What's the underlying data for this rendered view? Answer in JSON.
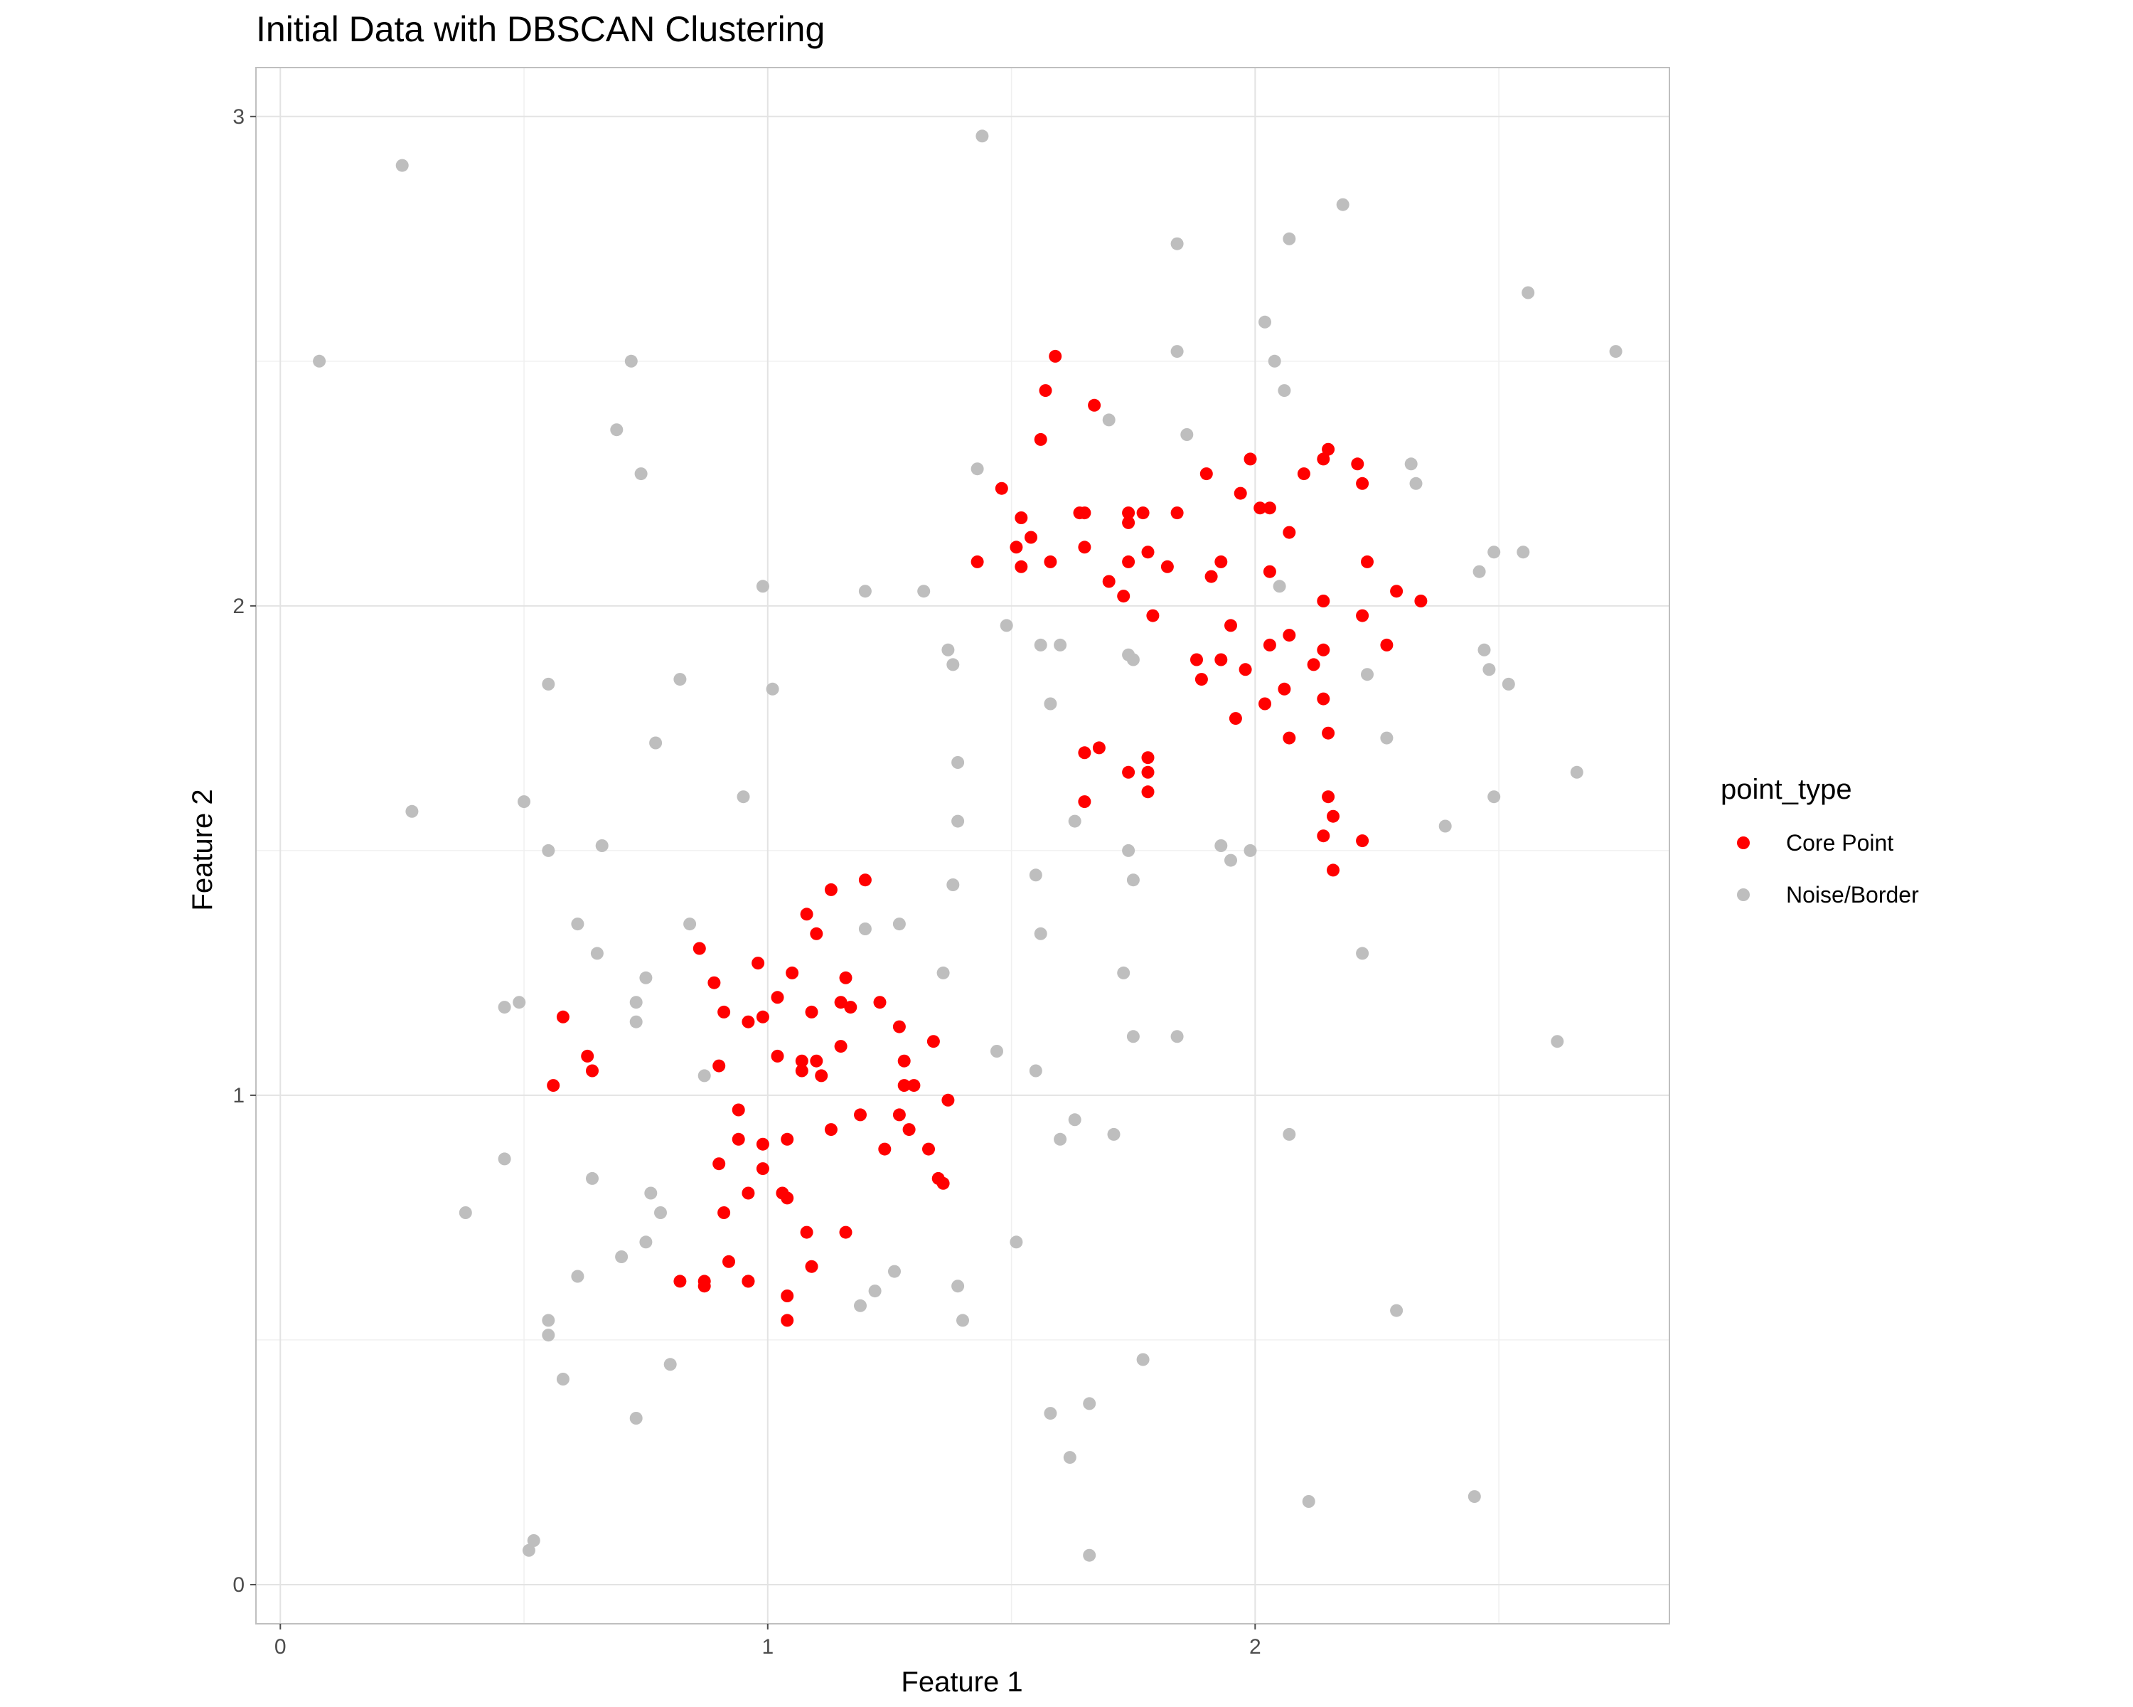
{
  "chart_data": {
    "type": "scatter",
    "title": "Initial Data with DBSCAN Clustering",
    "xlabel": "Feature 1",
    "ylabel": "Feature 2",
    "xlim": [
      -0.05,
      2.85
    ],
    "ylim": [
      -0.08,
      3.1
    ],
    "x_ticks": [
      0,
      1,
      2
    ],
    "y_ticks": [
      0,
      1,
      2,
      3
    ],
    "grid": true,
    "legend": {
      "title": "point_type",
      "placement": "right"
    },
    "series": [
      {
        "name": "Core Point",
        "color": "#ff0000",
        "points": [
          [
            1.59,
            2.51
          ],
          [
            1.57,
            2.44
          ],
          [
            1.67,
            2.41
          ],
          [
            1.56,
            2.34
          ],
          [
            1.48,
            2.24
          ],
          [
            1.52,
            2.18
          ],
          [
            1.54,
            2.14
          ],
          [
            1.51,
            2.12
          ],
          [
            1.52,
            2.08
          ],
          [
            1.43,
            2.09
          ],
          [
            1.58,
            2.09
          ],
          [
            1.65,
            2.12
          ],
          [
            1.64,
            2.19
          ],
          [
            1.65,
            2.19
          ],
          [
            1.74,
            2.19
          ],
          [
            1.77,
            2.19
          ],
          [
            1.74,
            2.17
          ],
          [
            1.78,
            2.11
          ],
          [
            1.74,
            2.09
          ],
          [
            1.7,
            2.05
          ],
          [
            1.73,
            2.02
          ],
          [
            1.79,
            1.98
          ],
          [
            1.82,
            2.08
          ],
          [
            1.84,
            2.19
          ],
          [
            1.9,
            2.27
          ],
          [
            1.91,
            2.06
          ],
          [
            1.93,
            2.09
          ],
          [
            1.97,
            2.23
          ],
          [
            1.99,
            2.3
          ],
          [
            2.01,
            2.2
          ],
          [
            2.03,
            2.2
          ],
          [
            2.07,
            2.15
          ],
          [
            2.1,
            2.27
          ],
          [
            2.14,
            2.3
          ],
          [
            2.15,
            2.32
          ],
          [
            2.21,
            2.29
          ],
          [
            2.22,
            2.25
          ],
          [
            2.03,
            2.07
          ],
          [
            2.23,
            2.09
          ],
          [
            2.14,
            2.01
          ],
          [
            2.22,
            1.98
          ],
          [
            2.29,
            2.03
          ],
          [
            2.34,
            2.01
          ],
          [
            2.27,
            1.92
          ],
          [
            2.14,
            1.91
          ],
          [
            2.12,
            1.88
          ],
          [
            2.07,
            1.94
          ],
          [
            2.03,
            1.92
          ],
          [
            1.95,
            1.96
          ],
          [
            1.93,
            1.89
          ],
          [
            1.88,
            1.89
          ],
          [
            1.89,
            1.85
          ],
          [
            1.98,
            1.87
          ],
          [
            2.06,
            1.83
          ],
          [
            2.02,
            1.8
          ],
          [
            2.14,
            1.81
          ],
          [
            1.96,
            1.77
          ],
          [
            2.07,
            1.73
          ],
          [
            2.15,
            1.74
          ],
          [
            1.65,
            1.7
          ],
          [
            1.68,
            1.71
          ],
          [
            1.74,
            1.66
          ],
          [
            1.78,
            1.69
          ],
          [
            1.78,
            1.66
          ],
          [
            1.78,
            1.62
          ],
          [
            1.65,
            1.6
          ],
          [
            2.15,
            1.61
          ],
          [
            2.16,
            1.57
          ],
          [
            2.14,
            1.53
          ],
          [
            2.22,
            1.52
          ],
          [
            2.16,
            1.46
          ],
          [
            1.2,
            1.44
          ],
          [
            1.13,
            1.42
          ],
          [
            1.08,
            1.37
          ],
          [
            1.1,
            1.33
          ],
          [
            0.86,
            1.3
          ],
          [
            0.98,
            1.27
          ],
          [
            1.05,
            1.25
          ],
          [
            1.16,
            1.24
          ],
          [
            0.89,
            1.23
          ],
          [
            1.02,
            1.2
          ],
          [
            1.15,
            1.19
          ],
          [
            1.17,
            1.18
          ],
          [
            1.23,
            1.19
          ],
          [
            0.58,
            1.16
          ],
          [
            0.91,
            1.17
          ],
          [
            0.96,
            1.15
          ],
          [
            0.99,
            1.16
          ],
          [
            1.09,
            1.17
          ],
          [
            1.27,
            1.14
          ],
          [
            1.34,
            1.11
          ],
          [
            1.15,
            1.1
          ],
          [
            0.63,
            1.08
          ],
          [
            0.64,
            1.05
          ],
          [
            0.9,
            1.06
          ],
          [
            1.02,
            1.08
          ],
          [
            1.07,
            1.07
          ],
          [
            1.1,
            1.07
          ],
          [
            1.07,
            1.05
          ],
          [
            1.11,
            1.04
          ],
          [
            1.28,
            1.07
          ],
          [
            0.56,
            1.02
          ],
          [
            1.28,
            1.02
          ],
          [
            1.3,
            1.02
          ],
          [
            1.37,
            0.99
          ],
          [
            0.94,
            0.97
          ],
          [
            1.19,
            0.96
          ],
          [
            1.27,
            0.96
          ],
          [
            1.13,
            0.93
          ],
          [
            1.29,
            0.93
          ],
          [
            0.94,
            0.91
          ],
          [
            1.04,
            0.91
          ],
          [
            0.99,
            0.9
          ],
          [
            1.24,
            0.89
          ],
          [
            1.33,
            0.89
          ],
          [
            0.9,
            0.86
          ],
          [
            0.99,
            0.85
          ],
          [
            1.35,
            0.83
          ],
          [
            1.36,
            0.82
          ],
          [
            0.96,
            0.8
          ],
          [
            1.03,
            0.8
          ],
          [
            1.04,
            0.79
          ],
          [
            0.91,
            0.76
          ],
          [
            1.08,
            0.72
          ],
          [
            1.16,
            0.72
          ],
          [
            0.92,
            0.66
          ],
          [
            1.09,
            0.65
          ],
          [
            0.82,
            0.62
          ],
          [
            0.87,
            0.62
          ],
          [
            0.87,
            0.61
          ],
          [
            0.96,
            0.62
          ],
          [
            0.96,
            0.62
          ],
          [
            1.04,
            0.59
          ],
          [
            1.04,
            0.54
          ]
        ]
      },
      {
        "name": "Noise/Border",
        "color": "#bebebe",
        "points": [
          [
            1.44,
            2.96
          ],
          [
            0.25,
            2.9
          ],
          [
            2.18,
            2.82
          ],
          [
            1.84,
            2.74
          ],
          [
            2.07,
            2.75
          ],
          [
            2.56,
            2.64
          ],
          [
            2.02,
            2.58
          ],
          [
            0.08,
            2.5
          ],
          [
            0.72,
            2.5
          ],
          [
            1.84,
            2.52
          ],
          [
            2.04,
            2.5
          ],
          [
            2.74,
            2.52
          ],
          [
            2.06,
            2.44
          ],
          [
            1.7,
            2.38
          ],
          [
            0.69,
            2.36
          ],
          [
            1.86,
            2.35
          ],
          [
            0.74,
            2.27
          ],
          [
            1.43,
            2.28
          ],
          [
            2.32,
            2.29
          ],
          [
            2.33,
            2.25
          ],
          [
            2.46,
            2.07
          ],
          [
            2.49,
            2.11
          ],
          [
            2.55,
            2.11
          ],
          [
            0.99,
            2.04
          ],
          [
            1.2,
            2.03
          ],
          [
            1.32,
            2.03
          ],
          [
            2.05,
            2.04
          ],
          [
            1.49,
            1.96
          ],
          [
            1.56,
            1.92
          ],
          [
            1.6,
            1.92
          ],
          [
            1.37,
            1.91
          ],
          [
            1.38,
            1.88
          ],
          [
            1.74,
            1.9
          ],
          [
            1.75,
            1.89
          ],
          [
            2.47,
            1.91
          ],
          [
            2.48,
            1.87
          ],
          [
            2.23,
            1.86
          ],
          [
            0.82,
            1.85
          ],
          [
            0.55,
            1.84
          ],
          [
            1.01,
            1.83
          ],
          [
            2.52,
            1.84
          ],
          [
            1.58,
            1.8
          ],
          [
            0.77,
            1.72
          ],
          [
            2.27,
            1.73
          ],
          [
            1.39,
            1.68
          ],
          [
            2.66,
            1.66
          ],
          [
            0.5,
            1.6
          ],
          [
            0.95,
            1.61
          ],
          [
            2.49,
            1.61
          ],
          [
            0.27,
            1.58
          ],
          [
            1.39,
            1.56
          ],
          [
            1.63,
            1.56
          ],
          [
            2.39,
            1.55
          ],
          [
            0.55,
            1.5
          ],
          [
            0.66,
            1.51
          ],
          [
            1.74,
            1.5
          ],
          [
            1.93,
            1.51
          ],
          [
            1.95,
            1.48
          ],
          [
            1.99,
            1.5
          ],
          [
            1.55,
            1.45
          ],
          [
            1.75,
            1.44
          ],
          [
            1.38,
            1.43
          ],
          [
            0.61,
            1.35
          ],
          [
            0.84,
            1.35
          ],
          [
            1.2,
            1.34
          ],
          [
            1.27,
            1.35
          ],
          [
            1.56,
            1.33
          ],
          [
            0.65,
            1.29
          ],
          [
            2.22,
            1.29
          ],
          [
            1.36,
            1.25
          ],
          [
            1.73,
            1.25
          ],
          [
            0.75,
            1.24
          ],
          [
            0.46,
            1.18
          ],
          [
            0.49,
            1.19
          ],
          [
            0.73,
            1.19
          ],
          [
            0.73,
            1.15
          ],
          [
            1.75,
            1.12
          ],
          [
            1.84,
            1.12
          ],
          [
            2.62,
            1.11
          ],
          [
            1.47,
            1.09
          ],
          [
            1.55,
            1.05
          ],
          [
            0.87,
            1.04
          ],
          [
            1.63,
            0.95
          ],
          [
            1.6,
            0.91
          ],
          [
            1.71,
            0.92
          ],
          [
            2.07,
            0.92
          ],
          [
            0.46,
            0.87
          ],
          [
            0.64,
            0.83
          ],
          [
            0.76,
            0.8
          ],
          [
            0.78,
            0.76
          ],
          [
            0.38,
            0.76
          ],
          [
            1.51,
            0.7
          ],
          [
            0.75,
            0.7
          ],
          [
            0.7,
            0.67
          ],
          [
            0.61,
            0.63
          ],
          [
            1.26,
            0.64
          ],
          [
            1.39,
            0.61
          ],
          [
            1.22,
            0.6
          ],
          [
            1.19,
            0.57
          ],
          [
            0.55,
            0.54
          ],
          [
            1.4,
            0.54
          ],
          [
            2.29,
            0.56
          ],
          [
            0.55,
            0.51
          ],
          [
            0.8,
            0.45
          ],
          [
            1.77,
            0.46
          ],
          [
            0.58,
            0.42
          ],
          [
            1.58,
            0.35
          ],
          [
            1.66,
            0.37
          ],
          [
            0.73,
            0.34
          ],
          [
            1.62,
            0.26
          ],
          [
            2.45,
            0.18
          ],
          [
            2.11,
            0.17
          ],
          [
            0.52,
            0.09
          ],
          [
            0.51,
            0.07
          ],
          [
            1.66,
            0.06
          ]
        ]
      }
    ]
  }
}
